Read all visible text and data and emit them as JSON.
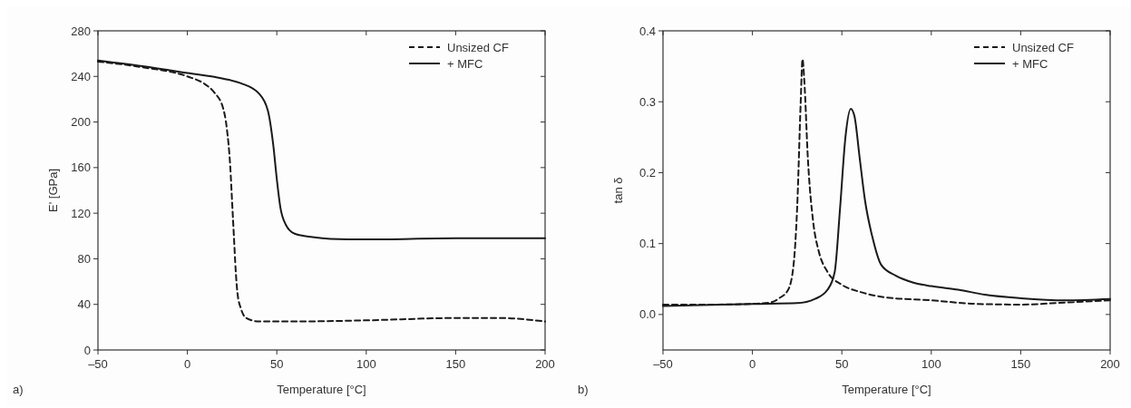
{
  "chart_data": [
    {
      "type": "line",
      "xlabel": "Temperature [°C]",
      "ylabel": "E' [GPa]",
      "annotations": [
        "a)"
      ],
      "xlim": [
        -50,
        200
      ],
      "xticks": [
        {
          "value": -50,
          "label": "–50"
        },
        0,
        50,
        100,
        150,
        200
      ],
      "ylim": [
        0,
        280
      ],
      "yticks": [
        0,
        40,
        80,
        120,
        160,
        200,
        240,
        280
      ],
      "legend": "top right",
      "grid": false,
      "series": [
        {
          "name": "Unsized CF",
          "color": "#1a1a1a",
          "line_style": "dashed",
          "x": [
            -50,
            -25,
            0,
            10,
            15,
            20,
            22,
            24,
            25,
            26,
            27,
            28,
            30,
            33,
            40,
            60,
            100,
            150,
            175,
            200
          ],
          "values": [
            253,
            248,
            240,
            233,
            226,
            212,
            195,
            160,
            130,
            100,
            70,
            50,
            36,
            28,
            25,
            25,
            26,
            28,
            28,
            25
          ]
        },
        {
          "name": "+ MFC",
          "color": "#1a1a1a",
          "line_style": "solid",
          "x": [
            -50,
            -25,
            0,
            20,
            30,
            40,
            45,
            48,
            50,
            52,
            55,
            60,
            70,
            80,
            100,
            150,
            200
          ],
          "values": [
            254,
            249,
            243,
            238,
            234,
            225,
            210,
            180,
            150,
            125,
            110,
            102,
            99,
            97.5,
            97,
            98,
            98
          ]
        }
      ]
    },
    {
      "type": "line",
      "xlabel": "Temperature [°C]",
      "ylabel": "tan δ",
      "annotations": [
        "b)"
      ],
      "xlim": [
        -50,
        200
      ],
      "xticks": [
        {
          "value": -50,
          "label": "–50"
        },
        0,
        50,
        100,
        150,
        200
      ],
      "ylim": [
        -0.05,
        0.4
      ],
      "yticks": [
        "0.0",
        0.1,
        0.2,
        0.3,
        0.4
      ],
      "legend": "top right",
      "grid": false,
      "series": [
        {
          "name": "Unsized CF",
          "color": "#1a1a1a",
          "line_style": "dashed",
          "x": [
            -50,
            -25,
            0,
            10,
            15,
            20,
            23,
            25,
            27,
            28,
            29,
            31,
            34,
            37,
            42,
            50,
            60,
            75,
            100,
            125,
            150,
            175,
            200
          ],
          "values": [
            0.014,
            0.014,
            0.015,
            0.017,
            0.023,
            0.035,
            0.07,
            0.15,
            0.3,
            0.36,
            0.33,
            0.22,
            0.13,
            0.09,
            0.06,
            0.042,
            0.032,
            0.024,
            0.02,
            0.015,
            0.014,
            0.017,
            0.02
          ]
        },
        {
          "name": "+ MFC",
          "color": "#1a1a1a",
          "line_style": "solid",
          "x": [
            -50,
            0,
            25,
            35,
            42,
            46,
            49,
            52,
            55,
            57,
            60,
            63,
            67,
            72,
            80,
            90,
            100,
            115,
            130,
            150,
            175,
            200
          ],
          "values": [
            0.012,
            0.015,
            0.016,
            0.022,
            0.035,
            0.06,
            0.15,
            0.25,
            0.29,
            0.28,
            0.22,
            0.16,
            0.11,
            0.07,
            0.055,
            0.045,
            0.04,
            0.035,
            0.028,
            0.023,
            0.02,
            0.022
          ]
        }
      ]
    }
  ]
}
